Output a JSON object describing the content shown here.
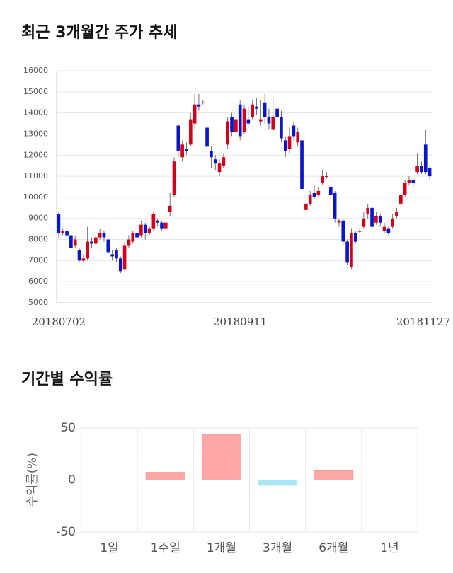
{
  "chart_data": [
    {
      "type": "candlestick",
      "title": "최근 3개월간 주가 추세",
      "categories": [
        "20180702",
        null,
        null,
        null,
        null,
        null,
        null,
        null,
        null,
        null,
        null,
        null,
        null,
        null,
        null,
        null,
        null,
        null,
        null,
        null,
        null,
        null,
        null,
        null,
        null,
        null,
        null,
        null,
        null,
        null,
        null,
        null,
        null,
        null,
        null,
        null,
        null,
        null,
        null,
        null,
        null,
        null,
        null,
        null,
        "20180911",
        null,
        null,
        null,
        null,
        null,
        null,
        null,
        null,
        null,
        null,
        null,
        null,
        null,
        null,
        null,
        null,
        null,
        null,
        null,
        null,
        null,
        null,
        null,
        null,
        null,
        null,
        null,
        null,
        null,
        null,
        null,
        null,
        null,
        null,
        null,
        null,
        null,
        null,
        null,
        null,
        null,
        null,
        null,
        null,
        null,
        "20181127"
      ],
      "open": [
        9200,
        8300,
        8400,
        8200,
        7700,
        7500,
        7000,
        7100,
        7900,
        7800,
        8100,
        8300,
        8000,
        7300,
        7500,
        7100,
        6600,
        7700,
        7900,
        8300,
        8200,
        8700,
        8300,
        8500,
        8900,
        8800,
        8500,
        9300,
        10100,
        13400,
        11900,
        12300,
        12500,
        13500,
        14400,
        14500,
        13300,
        12200,
        11800,
        11200,
        11500,
        12500,
        13800,
        13100,
        14400,
        13100,
        13700,
        13800,
        14300,
        13600,
        14500,
        13800,
        13200,
        14200,
        13800,
        12700,
        12300,
        13400,
        12600,
        12700,
        9400,
        9700,
        10200,
        10100,
        10700,
        11000,
        10500,
        10200,
        8800,
        8900,
        7900,
        6700,
        8300,
        8400,
        8600,
        9200,
        9500,
        8800,
        9100,
        8400,
        8500,
        8600,
        9100,
        9700,
        10100,
        10700,
        10800,
        11200,
        11500,
        12500,
        11400
      ],
      "high": [
        9300,
        8500,
        8500,
        8300,
        8200,
        7600,
        7300,
        8600,
        8100,
        8300,
        8500,
        8400,
        8100,
        7500,
        7600,
        7200,
        7900,
        8200,
        8400,
        8500,
        8900,
        8800,
        8600,
        9300,
        9000,
        8900,
        8900,
        10200,
        11900,
        13500,
        12700,
        12600,
        14000,
        14900,
        14900,
        14600,
        13400,
        12400,
        12000,
        11800,
        12100,
        13800,
        14000,
        13900,
        14600,
        14400,
        14300,
        14600,
        14700,
        14600,
        14900,
        14200,
        14700,
        15000,
        14100,
        12900,
        13300,
        13600,
        13300,
        12900,
        9900,
        10300,
        10600,
        10500,
        11300,
        11200,
        10600,
        10300,
        9000,
        9000,
        8000,
        8500,
        8400,
        8500,
        9300,
        9700,
        10200,
        9300,
        9200,
        8800,
        8600,
        9200,
        9500,
        10300,
        10800,
        11000,
        10900,
        12100,
        11700,
        13200,
        11500
      ],
      "low": [
        8100,
        8200,
        7900,
        7500,
        7600,
        6900,
        6900,
        7000,
        7600,
        7700,
        8000,
        7900,
        7300,
        7000,
        6900,
        6400,
        6500,
        7600,
        7800,
        7900,
        8100,
        8000,
        8200,
        8400,
        8600,
        8400,
        8400,
        9100,
        10000,
        11900,
        11700,
        12000,
        12400,
        13200,
        14100,
        14400,
        12200,
        11400,
        11300,
        11000,
        11400,
        12300,
        12900,
        12900,
        12700,
        13000,
        13400,
        13700,
        13900,
        13400,
        13500,
        13200,
        13100,
        13600,
        12600,
        11900,
        12100,
        12700,
        12400,
        10300,
        9300,
        9600,
        9900,
        10000,
        10600,
        10900,
        9900,
        8800,
        8600,
        7700,
        6800,
        6600,
        7800,
        8300,
        8500,
        9000,
        8500,
        8700,
        8600,
        8300,
        8200,
        8500,
        9000,
        9600,
        10000,
        10600,
        10500,
        11100,
        11100,
        11100,
        10800
      ],
      "close": [
        8300,
        8400,
        8200,
        7600,
        8000,
        7000,
        7100,
        7900,
        7800,
        8100,
        8300,
        8100,
        7400,
        7200,
        7100,
        6500,
        7700,
        8000,
        8300,
        8100,
        8700,
        8300,
        8500,
        9200,
        8800,
        8500,
        8800,
        9600,
        11700,
        12200,
        12500,
        12200,
        13700,
        14400,
        14300,
        14500,
        12400,
        11900,
        11600,
        11600,
        11900,
        13600,
        13100,
        13700,
        12900,
        14200,
        13500,
        14400,
        14200,
        13700,
        13800,
        13500,
        13800,
        13800,
        12800,
        12200,
        12900,
        12900,
        13100,
        10400,
        9700,
        10100,
        10000,
        10300,
        11000,
        11000,
        10100,
        9000,
        8900,
        7900,
        6900,
        8300,
        7900,
        8400,
        9000,
        9500,
        8600,
        9100,
        8800,
        8600,
        8300,
        9000,
        9300,
        10100,
        10700,
        10800,
        10700,
        11500,
        11200,
        11200,
        11000
      ],
      "up_color": "#d0021b",
      "down_color": "#0a14c8",
      "ylim": [
        5000,
        16000
      ],
      "yticks": [
        5000,
        6000,
        7000,
        8000,
        9000,
        10000,
        11000,
        12000,
        13000,
        14000,
        15000,
        16000
      ],
      "grid": true
    },
    {
      "type": "bar",
      "title": "기간별 수익률",
      "ylabel": "수익률(%)",
      "categories": [
        "1일",
        "1주일",
        "1개월",
        "3개월",
        "6개월",
        "1년"
      ],
      "values": [
        0,
        7.5,
        44,
        -5,
        9,
        0
      ],
      "color": "#ffa6a6",
      "negative_color": "#a9e7f3",
      "ylim": [
        -50,
        50
      ],
      "yticks": [
        -50,
        0,
        50
      ],
      "grid": true
    }
  ]
}
